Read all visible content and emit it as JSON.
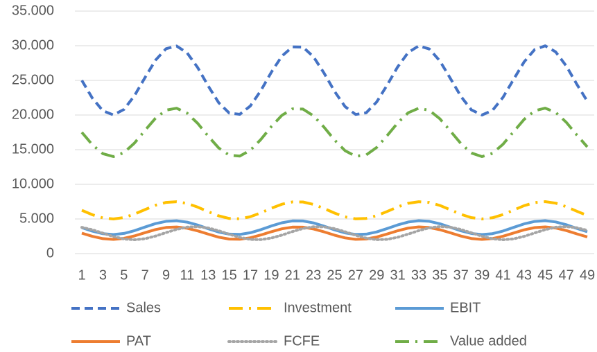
{
  "chart_data": {
    "type": "line",
    "categories": [
      1,
      null,
      3,
      null,
      5,
      null,
      7,
      null,
      9,
      null,
      11,
      null,
      13,
      null,
      15,
      null,
      17,
      null,
      19,
      null,
      21,
      null,
      23,
      null,
      25,
      null,
      27,
      null,
      29,
      null,
      31,
      null,
      33,
      null,
      35,
      null,
      37,
      null,
      39,
      null,
      41,
      null,
      43,
      null,
      45,
      null,
      47,
      null,
      49
    ],
    "ylim": [
      0,
      35000
    ],
    "yticks": [
      0,
      {
        "value": 5000,
        "label": "5.000"
      },
      {
        "value": 10000,
        "label": "10.000"
      },
      {
        "value": 15000,
        "label": "15.000"
      },
      {
        "value": 20000,
        "label": "20.000"
      },
      {
        "value": 25000,
        "label": "25.000"
      },
      {
        "value": 30000,
        "label": "30.000"
      },
      {
        "value": 35000,
        "label": "35.000"
      }
    ],
    "grid": true,
    "legend": "bottom",
    "series": [
      {
        "name": "Sales",
        "color": "#4472c4",
        "dash": "dash",
        "values": [
          25000,
          22440,
          20605,
          20005,
          20810,
          22790,
          25400,
          27915,
          29575,
          29965,
          28960,
          26850,
          24195,
          21785,
          20280,
          20100,
          21300,
          23535,
          26195,
          28515,
          29835,
          29800,
          28410,
          26065,
          23415,
          21215,
          20075,
          20325,
          21890,
          24330,
          26955,
          29040,
          29980,
          29530,
          27800,
          25265,
          22675,
          20740,
          20000,
          20670,
          22555,
          25135,
          27675,
          29450,
          29990,
          29110,
          27090,
          24465,
          21995
        ]
      },
      {
        "name": "Investment",
        "color": "#ffc000",
        "dash": "longdashdot",
        "values": [
          6250,
          5610,
          5151,
          5001,
          5203,
          5698,
          6350,
          6979,
          7394,
          7491,
          7240,
          6713,
          6049,
          5446,
          5070,
          5025,
          5325,
          5884,
          6549,
          7129,
          7459,
          7450,
          7103,
          6516,
          5854,
          5304,
          5019,
          5081,
          5473,
          6083,
          6739,
          7260,
          7495,
          7383,
          6950,
          6316,
          5669,
          5185,
          5000,
          5168,
          5639,
          6284,
          6919,
          7363,
          7498,
          7278,
          6773,
          6116,
          5499
        ]
      },
      {
        "name": "EBIT",
        "color": "#5b9bd5",
        "dash": "solid",
        "values": [
          3750,
          3238,
          2871,
          2751,
          2912,
          3308,
          3830,
          4333,
          4665,
          4743,
          4542,
          4120,
          3589,
          3107,
          2806,
          2770,
          3010,
          3457,
          3989,
          4453,
          4717,
          4710,
          4432,
          3963,
          3433,
          2993,
          2765,
          2815,
          3128,
          3616,
          4141,
          4558,
          4746,
          4656,
          4310,
          3803,
          3285,
          2898,
          2750,
          2884,
          3261,
          3777,
          4285,
          4640,
          4748,
          4572,
          4168,
          3643,
          3149
        ]
      },
      {
        "name": "PAT",
        "color": "#ed7d31",
        "dash": "solid",
        "values": [
          2950,
          2489,
          2159,
          2051,
          2196,
          2552,
          3022,
          3475,
          3774,
          3844,
          3663,
          3283,
          2805,
          2371,
          2100,
          2068,
          2284,
          2686,
          3165,
          3583,
          3820,
          3814,
          3564,
          3142,
          2665,
          2269,
          2064,
          2109,
          2390,
          2829,
          3302,
          3677,
          3846,
          3765,
          3454,
          2998,
          2532,
          2183,
          2050,
          2171,
          2510,
          2974,
          3432,
          3751,
          3848,
          3690,
          3326,
          2854,
          2409
        ]
      },
      {
        "name": "FCFE",
        "color": "#a5a5a5",
        "dash": "dot",
        "values": [
          3785,
          3436,
          2950,
          2464,
          2115,
          2001,
          2154,
          2530,
          3026,
          3504,
          3819,
          3893,
          3702,
          3302,
          2797,
          2339,
          2053,
          2019,
          2247,
          2672,
          3177,
          3618,
          3869,
          3862,
          3598,
          3152,
          2649,
          2231,
          2014,
          2062,
          2359,
          2823,
          3321,
          3718,
          3896,
          3811,
          3482,
          3000,
          2508,
          2141,
          2000,
          2127,
          2485,
          2976,
          3458,
          3796,
          3898,
          3731,
          3347
        ]
      },
      {
        "name": "Value added",
        "color": "#70ad47",
        "dash": "longdashdot",
        "values": [
          17500,
          15708,
          14424,
          14004,
          14567,
          15953,
          17780,
          19541,
          20703,
          20976,
          20272,
          18795,
          16937,
          15250,
          14196,
          14070,
          14910,
          16475,
          18337,
          19961,
          20885,
          20860,
          19887,
          18246,
          16391,
          14851,
          14053,
          14228,
          15323,
          17031,
          18869,
          20328,
          20986,
          20671,
          19460,
          17686,
          15873,
          14518,
          14000,
          14469,
          15789,
          17595,
          19373,
          20615,
          20993,
          20377,
          18963,
          17126,
          15397
        ]
      }
    ]
  }
}
